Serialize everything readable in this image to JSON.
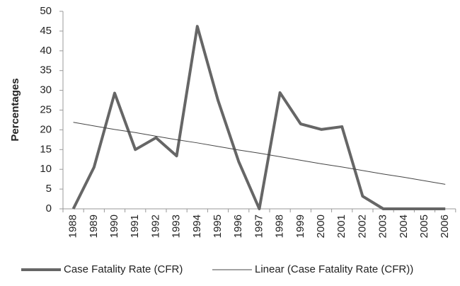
{
  "chart_data": {
    "type": "line",
    "y_label": "Percentages",
    "categories": [
      "1988",
      "1989",
      "1990",
      "1991",
      "1992",
      "1993",
      "1994",
      "1995",
      "1996",
      "1997",
      "1998",
      "1999",
      "2000",
      "2001",
      "2002",
      "2003",
      "2004",
      "2005",
      "2006"
    ],
    "series": [
      {
        "name": "Case Fatality Rate (CFR)",
        "color": "#666666",
        "width": 4,
        "values": [
          0,
          10.5,
          29.3,
          15,
          18,
          13.4,
          46.2,
          27.5,
          12,
          0,
          29.4,
          21.5,
          20.1,
          20.8,
          3.2,
          0,
          0,
          0,
          0
        ]
      },
      {
        "name": "Linear (Case Fatality Rate (CFR))",
        "color": "#444444",
        "width": 1,
        "values": [
          21.9,
          21.0,
          20.1,
          19.3,
          18.4,
          17.5,
          16.7,
          15.8,
          14.9,
          14.1,
          13.2,
          12.3,
          11.4,
          10.6,
          9.7,
          8.8,
          8.0,
          7.1,
          6.2
        ]
      }
    ],
    "ylim": [
      0,
      50
    ],
    "yticks": [
      0,
      5,
      10,
      15,
      20,
      25,
      30,
      35,
      40,
      45,
      50
    ],
    "legend": "bottom"
  }
}
